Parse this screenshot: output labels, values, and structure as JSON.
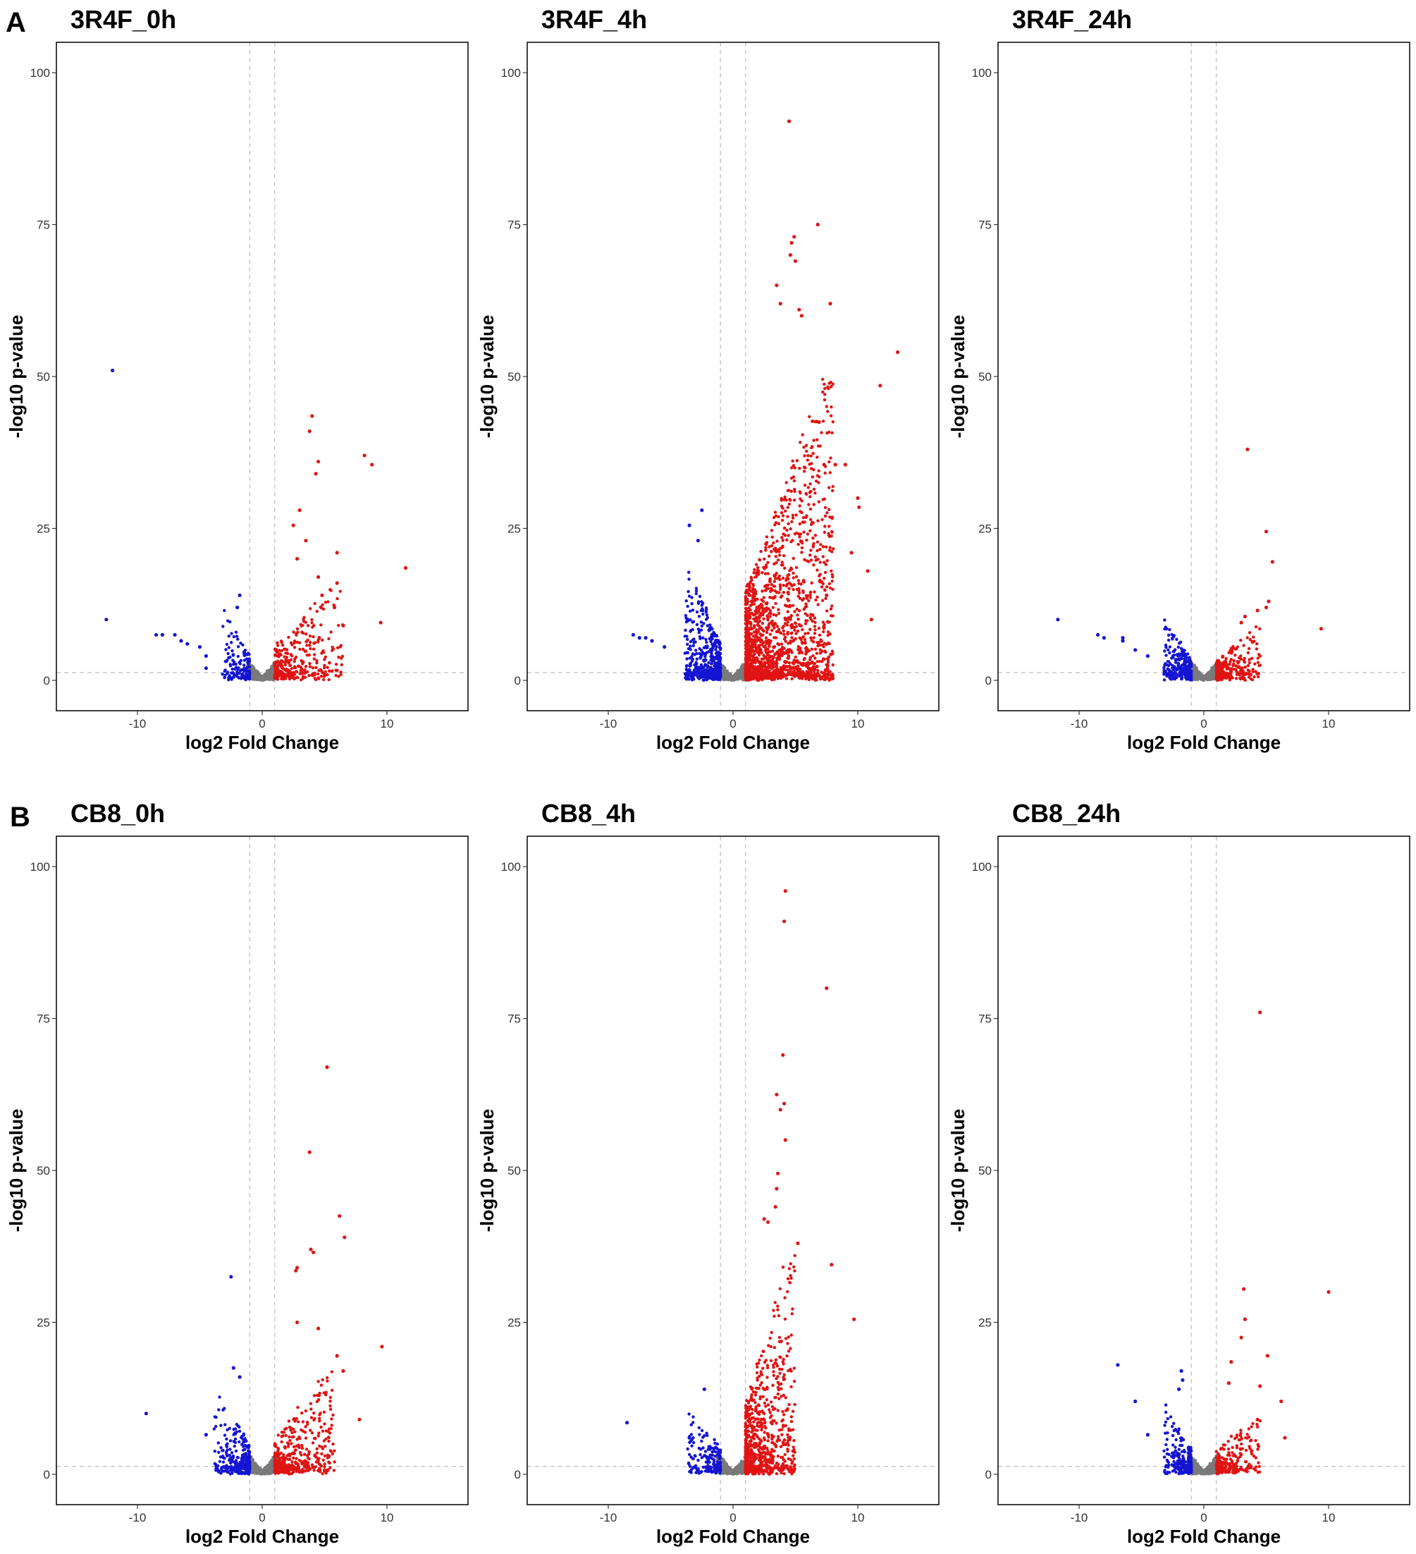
{
  "figure": {
    "panel_labels": [
      "A",
      "B"
    ]
  },
  "colors": {
    "down": "#1414d2",
    "up": "#e01414",
    "ns": "#7a7a7a",
    "threshold": "#c8c8c8"
  },
  "chart_data": [
    {
      "type": "scatter",
      "id": "3R4F_0h",
      "title": "3R4F_0h",
      "panel_label": "A",
      "xlabel": "log2 Fold Change",
      "ylabel": "-log10 p-value",
      "xlim": [
        -16.5,
        16.5
      ],
      "ylim": [
        -5,
        105
      ],
      "xticks": [
        -10,
        0,
        10
      ],
      "yticks": [
        0,
        25,
        50,
        75,
        100
      ],
      "thresholds": {
        "x": [
          -1,
          1
        ],
        "y": 1.3
      },
      "grid": false,
      "cloud": {
        "up_n": 320,
        "up_spread": 2.5,
        "up_max": 13,
        "down_n": 140,
        "down_spread": 1.0,
        "down_max": 8,
        "ns_n": 700
      },
      "points": [
        {
          "x": -12,
          "y": 51,
          "c": "down"
        },
        {
          "x": -12.5,
          "y": 10,
          "c": "down"
        },
        {
          "x": -8.5,
          "y": 7.5,
          "c": "down"
        },
        {
          "x": -8,
          "y": 7.5,
          "c": "down"
        },
        {
          "x": -7,
          "y": 7.5,
          "c": "down"
        },
        {
          "x": -6.5,
          "y": 6.5,
          "c": "down"
        },
        {
          "x": -6,
          "y": 6,
          "c": "down"
        },
        {
          "x": -5,
          "y": 5.5,
          "c": "down"
        },
        {
          "x": -4.5,
          "y": 4,
          "c": "down"
        },
        {
          "x": -4.5,
          "y": 2,
          "c": "down"
        },
        {
          "x": -1.8,
          "y": 14,
          "c": "down"
        },
        {
          "x": -2,
          "y": 12,
          "c": "down"
        },
        {
          "x": 4,
          "y": 43.5,
          "c": "up"
        },
        {
          "x": 3.8,
          "y": 41,
          "c": "up"
        },
        {
          "x": 4.5,
          "y": 36,
          "c": "up"
        },
        {
          "x": 4.3,
          "y": 34,
          "c": "up"
        },
        {
          "x": 8.2,
          "y": 37,
          "c": "up"
        },
        {
          "x": 8.8,
          "y": 35.5,
          "c": "up"
        },
        {
          "x": 11.5,
          "y": 18.5,
          "c": "up"
        },
        {
          "x": 9.5,
          "y": 9.5,
          "c": "up"
        },
        {
          "x": 3,
          "y": 28,
          "c": "up"
        },
        {
          "x": 2.5,
          "y": 25.5,
          "c": "up"
        },
        {
          "x": 3.5,
          "y": 23,
          "c": "up"
        },
        {
          "x": 6,
          "y": 21,
          "c": "up"
        },
        {
          "x": 6,
          "y": 16,
          "c": "up"
        },
        {
          "x": 6.5,
          "y": 9,
          "c": "up"
        },
        {
          "x": 5.8,
          "y": 12,
          "c": "up"
        },
        {
          "x": 2.8,
          "y": 20,
          "c": "up"
        },
        {
          "x": 4.5,
          "y": 17,
          "c": "up"
        },
        {
          "x": 4.8,
          "y": 14,
          "c": "up"
        }
      ]
    },
    {
      "type": "scatter",
      "id": "3R4F_4h",
      "title": "3R4F_4h",
      "xlabel": "log2 Fold Change",
      "ylabel": "-log10 p-value",
      "xlim": [
        -16.5,
        16.5
      ],
      "ylim": [
        -5,
        105
      ],
      "xticks": [
        -10,
        0,
        10
      ],
      "yticks": [
        0,
        25,
        50,
        75,
        100
      ],
      "thresholds": {
        "x": [
          -1,
          1
        ],
        "y": 1.3
      },
      "grid": false,
      "cloud": {
        "up_n": 1700,
        "up_spread": 3.2,
        "up_max": 40,
        "down_n": 520,
        "down_spread": 1.3,
        "down_max": 14,
        "ns_n": 900
      },
      "points": [
        {
          "x": 4.5,
          "y": 92,
          "c": "up"
        },
        {
          "x": 6.8,
          "y": 75,
          "c": "up"
        },
        {
          "x": 4.9,
          "y": 73,
          "c": "up"
        },
        {
          "x": 4.7,
          "y": 72,
          "c": "up"
        },
        {
          "x": 4.6,
          "y": 70,
          "c": "up"
        },
        {
          "x": 5,
          "y": 69,
          "c": "up"
        },
        {
          "x": 3.5,
          "y": 65,
          "c": "up"
        },
        {
          "x": 3.8,
          "y": 62,
          "c": "up"
        },
        {
          "x": 7.8,
          "y": 62,
          "c": "up"
        },
        {
          "x": 5.3,
          "y": 61,
          "c": "up"
        },
        {
          "x": 5.5,
          "y": 60,
          "c": "up"
        },
        {
          "x": 13.2,
          "y": 54,
          "c": "up"
        },
        {
          "x": 11.8,
          "y": 48.5,
          "c": "up"
        },
        {
          "x": 6.9,
          "y": 42.5,
          "c": "up"
        },
        {
          "x": 7.3,
          "y": 35.5,
          "c": "up"
        },
        {
          "x": 8.2,
          "y": 35.5,
          "c": "up"
        },
        {
          "x": 9,
          "y": 35.5,
          "c": "up"
        },
        {
          "x": 10,
          "y": 30,
          "c": "up"
        },
        {
          "x": 10.1,
          "y": 28.5,
          "c": "up"
        },
        {
          "x": 9.5,
          "y": 21,
          "c": "up"
        },
        {
          "x": 10.8,
          "y": 18,
          "c": "up"
        },
        {
          "x": 11.1,
          "y": 10,
          "c": "up"
        },
        {
          "x": 7.5,
          "y": 14,
          "c": "up"
        },
        {
          "x": -2.5,
          "y": 28,
          "c": "down"
        },
        {
          "x": -3.5,
          "y": 25.5,
          "c": "down"
        },
        {
          "x": -2.8,
          "y": 23,
          "c": "down"
        },
        {
          "x": -8,
          "y": 7.5,
          "c": "down"
        },
        {
          "x": -7.5,
          "y": 7,
          "c": "down"
        },
        {
          "x": -7,
          "y": 7,
          "c": "down"
        },
        {
          "x": -6.5,
          "y": 6.5,
          "c": "down"
        },
        {
          "x": -5.5,
          "y": 5.5,
          "c": "down"
        }
      ]
    },
    {
      "type": "scatter",
      "id": "3R4F_24h",
      "title": "3R4F_24h",
      "xlabel": "log2 Fold Change",
      "ylabel": "-log10 p-value",
      "xlim": [
        -16.5,
        16.5
      ],
      "ylim": [
        -5,
        105
      ],
      "xticks": [
        -10,
        0,
        10
      ],
      "yticks": [
        0,
        25,
        50,
        75,
        100
      ],
      "thresholds": {
        "x": [
          -1,
          1
        ],
        "y": 1.3
      },
      "grid": false,
      "cloud": {
        "up_n": 230,
        "up_spread": 1.6,
        "up_max": 7,
        "down_n": 260,
        "down_spread": 1.0,
        "down_max": 7,
        "ns_n": 700
      },
      "points": [
        {
          "x": 3.5,
          "y": 38,
          "c": "up"
        },
        {
          "x": 5,
          "y": 24.5,
          "c": "up"
        },
        {
          "x": 5.5,
          "y": 19.5,
          "c": "up"
        },
        {
          "x": 5.2,
          "y": 13,
          "c": "up"
        },
        {
          "x": 5,
          "y": 12,
          "c": "up"
        },
        {
          "x": 4.3,
          "y": 11.5,
          "c": "up"
        },
        {
          "x": 3.3,
          "y": 10.5,
          "c": "up"
        },
        {
          "x": 3,
          "y": 9.5,
          "c": "up"
        },
        {
          "x": 9.4,
          "y": 8.5,
          "c": "up"
        },
        {
          "x": -11.7,
          "y": 10,
          "c": "down"
        },
        {
          "x": -8.5,
          "y": 7.5,
          "c": "down"
        },
        {
          "x": -8,
          "y": 7,
          "c": "down"
        },
        {
          "x": -6.5,
          "y": 7,
          "c": "down"
        },
        {
          "x": -6.5,
          "y": 6.5,
          "c": "down"
        },
        {
          "x": -5.5,
          "y": 5,
          "c": "down"
        },
        {
          "x": -4.5,
          "y": 4,
          "c": "down"
        },
        {
          "x": -3,
          "y": 8.5,
          "c": "down"
        }
      ]
    },
    {
      "type": "scatter",
      "id": "CB8_0h",
      "title": "CB8_0h",
      "panel_label": "B",
      "xlabel": "log2 Fold Change",
      "ylabel": "-log10 p-value",
      "xlim": [
        -16.5,
        16.5
      ],
      "ylim": [
        -5,
        105
      ],
      "xticks": [
        -10,
        0,
        10
      ],
      "yticks": [
        0,
        25,
        50,
        75,
        100
      ],
      "thresholds": {
        "x": [
          -1,
          1
        ],
        "y": 1.3
      },
      "grid": false,
      "cloud": {
        "up_n": 420,
        "up_spread": 2.2,
        "up_max": 14,
        "down_n": 260,
        "down_spread": 1.3,
        "down_max": 10,
        "ns_n": 800
      },
      "points": [
        {
          "x": 5.2,
          "y": 67,
          "c": "up"
        },
        {
          "x": 3.8,
          "y": 53,
          "c": "up"
        },
        {
          "x": 6.2,
          "y": 42.5,
          "c": "up"
        },
        {
          "x": 6.6,
          "y": 39,
          "c": "up"
        },
        {
          "x": 3.9,
          "y": 37,
          "c": "up"
        },
        {
          "x": 4.1,
          "y": 36.5,
          "c": "up"
        },
        {
          "x": 2.8,
          "y": 34,
          "c": "up"
        },
        {
          "x": 2.7,
          "y": 33.5,
          "c": "up"
        },
        {
          "x": 9.6,
          "y": 21,
          "c": "up"
        },
        {
          "x": 7.8,
          "y": 9,
          "c": "up"
        },
        {
          "x": 6,
          "y": 19.5,
          "c": "up"
        },
        {
          "x": 6.5,
          "y": 17,
          "c": "up"
        },
        {
          "x": 4.5,
          "y": 24,
          "c": "up"
        },
        {
          "x": 2.8,
          "y": 25,
          "c": "up"
        },
        {
          "x": -2.5,
          "y": 32.5,
          "c": "down"
        },
        {
          "x": -9.3,
          "y": 10,
          "c": "down"
        },
        {
          "x": -2.3,
          "y": 17.5,
          "c": "down"
        },
        {
          "x": -1.8,
          "y": 16,
          "c": "down"
        },
        {
          "x": -4.5,
          "y": 6.5,
          "c": "down"
        }
      ]
    },
    {
      "type": "scatter",
      "id": "CB8_4h",
      "title": "CB8_4h",
      "xlabel": "log2 Fold Change",
      "ylabel": "-log10 p-value",
      "xlim": [
        -16.5,
        16.5
      ],
      "ylim": [
        -5,
        105
      ],
      "xticks": [
        -10,
        0,
        10
      ],
      "yticks": [
        0,
        25,
        50,
        75,
        100
      ],
      "thresholds": {
        "x": [
          -1,
          1
        ],
        "y": 1.3
      },
      "grid": false,
      "cloud": {
        "up_n": 750,
        "up_spread": 1.8,
        "up_max": 30,
        "down_n": 160,
        "down_spread": 1.2,
        "down_max": 8,
        "ns_n": 900
      },
      "points": [
        {
          "x": 4.2,
          "y": 96,
          "c": "up"
        },
        {
          "x": 4.1,
          "y": 91,
          "c": "up"
        },
        {
          "x": 7.5,
          "y": 80,
          "c": "up"
        },
        {
          "x": 4,
          "y": 69,
          "c": "up"
        },
        {
          "x": 3.5,
          "y": 62.5,
          "c": "up"
        },
        {
          "x": 4.1,
          "y": 61,
          "c": "up"
        },
        {
          "x": 3.8,
          "y": 60,
          "c": "up"
        },
        {
          "x": 4.2,
          "y": 55,
          "c": "up"
        },
        {
          "x": 3.6,
          "y": 49.5,
          "c": "up"
        },
        {
          "x": 3.5,
          "y": 47,
          "c": "up"
        },
        {
          "x": 3.4,
          "y": 44,
          "c": "up"
        },
        {
          "x": 2.5,
          "y": 42,
          "c": "up"
        },
        {
          "x": 2.8,
          "y": 41.5,
          "c": "up"
        },
        {
          "x": 5.2,
          "y": 38,
          "c": "up"
        },
        {
          "x": 7.9,
          "y": 34.5,
          "c": "up"
        },
        {
          "x": 9.7,
          "y": 25.5,
          "c": "up"
        },
        {
          "x": -8.5,
          "y": 8.5,
          "c": "down"
        },
        {
          "x": -2.3,
          "y": 14,
          "c": "down"
        },
        {
          "x": -3.5,
          "y": 6,
          "c": "down"
        }
      ]
    },
    {
      "type": "scatter",
      "id": "CB8_24h",
      "title": "CB8_24h",
      "xlabel": "log2 Fold Change",
      "ylabel": "-log10 p-value",
      "xlim": [
        -16.5,
        16.5
      ],
      "ylim": [
        -5,
        105
      ],
      "xticks": [
        -10,
        0,
        10
      ],
      "yticks": [
        0,
        25,
        50,
        75,
        100
      ],
      "thresholds": {
        "x": [
          -1,
          1
        ],
        "y": 1.3
      },
      "grid": false,
      "cloud": {
        "up_n": 230,
        "up_spread": 1.6,
        "up_max": 8,
        "down_n": 230,
        "down_spread": 1.0,
        "down_max": 8,
        "ns_n": 700
      },
      "points": [
        {
          "x": 4.5,
          "y": 76,
          "c": "up"
        },
        {
          "x": 3.2,
          "y": 30.5,
          "c": "up"
        },
        {
          "x": 10,
          "y": 30,
          "c": "up"
        },
        {
          "x": 3.3,
          "y": 25.5,
          "c": "up"
        },
        {
          "x": 3,
          "y": 22.5,
          "c": "up"
        },
        {
          "x": 5.1,
          "y": 19.5,
          "c": "up"
        },
        {
          "x": 2.2,
          "y": 18.5,
          "c": "up"
        },
        {
          "x": 2,
          "y": 15,
          "c": "up"
        },
        {
          "x": 4.5,
          "y": 14.5,
          "c": "up"
        },
        {
          "x": 6.2,
          "y": 12,
          "c": "up"
        },
        {
          "x": 6.5,
          "y": 6,
          "c": "up"
        },
        {
          "x": 4.3,
          "y": 9,
          "c": "up"
        },
        {
          "x": -6.9,
          "y": 18,
          "c": "down"
        },
        {
          "x": -1.8,
          "y": 17,
          "c": "down"
        },
        {
          "x": -1.7,
          "y": 15.5,
          "c": "down"
        },
        {
          "x": -5.5,
          "y": 12,
          "c": "down"
        },
        {
          "x": -2,
          "y": 14,
          "c": "down"
        },
        {
          "x": -4.5,
          "y": 6.5,
          "c": "down"
        }
      ]
    }
  ]
}
